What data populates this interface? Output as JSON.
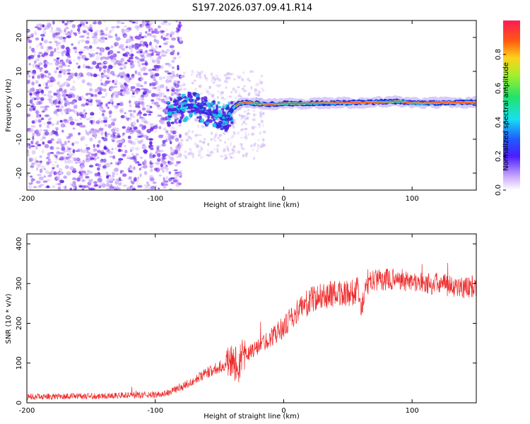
{
  "title": "S197.2026.037.09.41.R14",
  "colors": {
    "axis": "#000000",
    "snr_line": "#ee2a2a",
    "spectro_scatter": "#7b2cf0",
    "spectro_light": "#cdb5f5",
    "ridge_core": "#ff3030",
    "ridge_mid": "#19d8e8",
    "ridge_outer": "#2a2ad8"
  },
  "chart_data": [
    {
      "type": "heatmap",
      "name": "spectrogram",
      "xlabel": "Height of straight line (km)",
      "ylabel": "Frequency (Hz)",
      "xlim": [
        -200,
        150
      ],
      "ylim": [
        -25,
        25
      ],
      "xticks": [
        -200,
        -100,
        0,
        100
      ],
      "xtick_labels": [
        "-200",
        "-100",
        "0",
        "100"
      ],
      "yticks": [
        -20,
        -10,
        0,
        10,
        20
      ],
      "ytick_labels": [
        "-20",
        "-10",
        "0",
        "10",
        "20"
      ],
      "noise_region_x": [
        -200,
        -85
      ],
      "ridge": {
        "x": [
          -90,
          -80,
          -70,
          -60,
          -50,
          -45,
          -40,
          -35,
          -30,
          -20,
          -10,
          0,
          10,
          20,
          40,
          60,
          80,
          90,
          100,
          110,
          130,
          150
        ],
        "freq": [
          -2,
          -1,
          0,
          -2,
          -3,
          -4,
          -1,
          0.5,
          0.8,
          0.5,
          0.3,
          0.6,
          0.5,
          0.6,
          0.7,
          0.8,
          1,
          1.2,
          0.6,
          0.7,
          0.8,
          0.9
        ]
      },
      "colorbar": {
        "label": "Normalized spectral amplitude",
        "range": [
          0,
          1
        ],
        "ticks": [
          0.0,
          0.2,
          0.4,
          0.6,
          0.8
        ],
        "tick_labels": [
          "0.0",
          "0.2",
          "0.4",
          "0.6",
          "0.8"
        ]
      }
    },
    {
      "type": "line",
      "name": "snr",
      "xlabel": "Height of straight line (km)",
      "ylabel": "SNR (10 * v/v)",
      "xlim": [
        -200,
        150
      ],
      "ylim": [
        0,
        425
      ],
      "xticks": [
        -200,
        -100,
        0,
        100
      ],
      "xtick_labels": [
        "-200",
        "-100",
        "0",
        "100"
      ],
      "yticks": [
        0,
        100,
        200,
        300,
        400
      ],
      "ytick_labels": [
        "0",
        "100",
        "200",
        "300",
        "400"
      ],
      "x": [
        -200,
        -150,
        -100,
        -90,
        -80,
        -70,
        -60,
        -50,
        -40,
        -35,
        -30,
        -20,
        -10,
        0,
        10,
        20,
        30,
        40,
        50,
        58,
        60,
        65,
        70,
        80,
        90,
        100,
        110,
        120,
        130,
        140,
        150
      ],
      "values": [
        15,
        17,
        20,
        25,
        40,
        55,
        75,
        90,
        105,
        95,
        120,
        140,
        165,
        190,
        230,
        255,
        270,
        275,
        278,
        280,
        235,
        295,
        310,
        310,
        312,
        305,
        300,
        300,
        295,
        290,
        295
      ]
    }
  ]
}
